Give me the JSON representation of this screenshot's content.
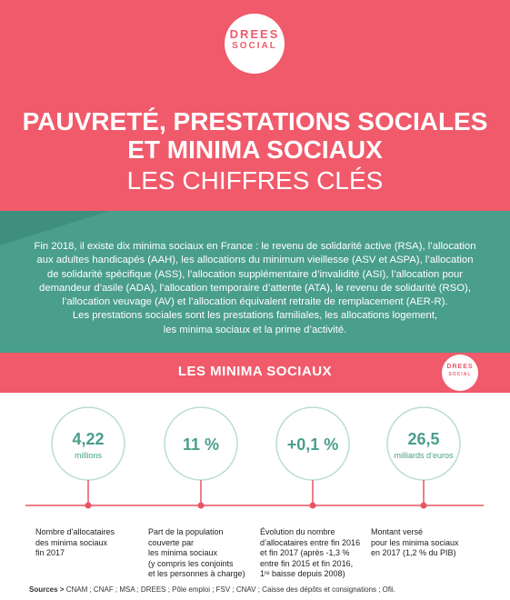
{
  "logo": {
    "line1": "DREES",
    "line2": "SOCIAL"
  },
  "header": {
    "title_lines": [
      "PAUVRETÉ, PRESTATIONS SOCIALES",
      "ET MINIMA SOCIAUX"
    ],
    "subtitle": "LES CHIFFRES CLÉS"
  },
  "intro": {
    "lines": [
      "Fin 2018, il existe dix minima sociaux en France : le revenu de solidarité active (RSA), l’allocation",
      "aux adultes handicapés (AAH), les allocations du minimum vieillesse (ASV et ASPA), l’allocation",
      "de solidarité spécifique (ASS), l’allocation supplémentaire d’invalidité (ASI), l’allocation pour",
      "demandeur d’asile (ADA), l’allocation temporaire d’attente (ATA), le revenu de solidarité (RSO),",
      "l’allocation veuvage (AV) et l’allocation équivalent retraite de remplacement (AER-R).",
      "Les prestations sociales sont les prestations familiales, les allocations logement,",
      "les minima sociaux et la prime d’activité."
    ]
  },
  "section": {
    "title": "LES MINIMA SOCIAUX"
  },
  "figures": [
    {
      "value": "4,22",
      "unit": "millions",
      "caption": [
        "Nombre d’allocataires",
        "des minima sociaux",
        "fin 2017"
      ]
    },
    {
      "value": "11 %",
      "caption": [
        "Part de la population",
        "couverte par",
        "les minima sociaux",
        "(y compris les conjoints",
        "et les personnes à charge)"
      ]
    },
    {
      "value": "+0,1 %",
      "caption": [
        "Évolution du nombre",
        "d’allocataires entre fin 2016",
        "et fin 2017 (après -1,3 %",
        "entre fin 2015 et fin 2016,",
        "1ʳᵉ baisse depuis 2008)"
      ]
    },
    {
      "value": "26,5",
      "unit": "milliards d’euros",
      "caption": [
        "Montant versé",
        "pour les minima sociaux",
        "en 2017 (1,2 % du PIB)"
      ]
    }
  ],
  "sources": {
    "label": "Sources >",
    "text": "CNAM ; CNAF ; MSA ; DREES ; Pôle emploi ; FSV ; CNAV ; Caisse des dépôts et consignations ; Ofii."
  }
}
